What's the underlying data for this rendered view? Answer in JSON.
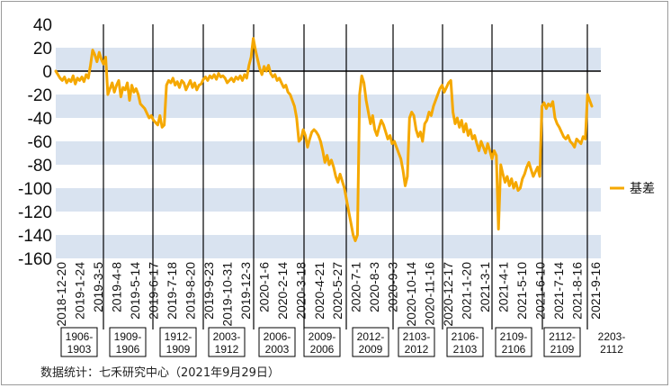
{
  "chart_data": {
    "type": "line",
    "source_note": "数据统计：七禾研究中心（2021年9月29日）",
    "series": [
      {
        "name": "基差",
        "color": "#f5a800"
      }
    ],
    "legend_position": "right",
    "ylim": [
      -160,
      40
    ],
    "yticks": [
      40,
      20,
      0,
      -20,
      -40,
      -60,
      -80,
      -100,
      -120,
      -140,
      -160
    ],
    "x_tick_labels": [
      "2018-12-20",
      "2019-1-24",
      "2019-3-5",
      "2019-4-8",
      "2019-5-14",
      "2019-6-17",
      "2019-7-18",
      "2019-8-20",
      "2019-9-23",
      "2019-10-31",
      "2019-12-3",
      "2020-1-6",
      "2020-2-14",
      "2020-3-18",
      "2020-4-21",
      "2020-5-27",
      "2020-7-1",
      "2020-8-3",
      "2020-9-3",
      "2020-10-14",
      "2020-11-16",
      "2020-12-17",
      "2021-1-20",
      "2021-3-1",
      "2021-4-1",
      "2021-5-10",
      "2021-6-10",
      "2021-7-14",
      "2021-8-16",
      "2021-9-16"
    ],
    "band_color": "#d9e3f0",
    "contract_periods": [
      "1906-1903",
      "1909-1906",
      "1912-1909",
      "2003-1912",
      "2006-2003",
      "2009-2006",
      "2012-2009",
      "2103-2012",
      "2106-2103",
      "2109-2106",
      "2112-2109",
      "2203-2112"
    ],
    "y": [
      0,
      -3,
      -6,
      -8,
      -5,
      -10,
      -7,
      -9,
      -4,
      -11,
      -6,
      -8,
      -5,
      -9,
      -3,
      -6,
      5,
      18,
      14,
      8,
      16,
      10,
      6,
      12,
      -20,
      -15,
      -10,
      -18,
      -12,
      -8,
      -22,
      -14,
      -16,
      -10,
      -25,
      -12,
      -18,
      -15,
      -20,
      -28,
      -30,
      -32,
      -36,
      -40,
      -38,
      -42,
      -44,
      -46,
      -38,
      -48,
      -46,
      -12,
      -8,
      -10,
      -6,
      -12,
      -9,
      -14,
      -8,
      -10,
      -16,
      -12,
      -8,
      -14,
      -10,
      -16,
      -12,
      -11,
      -7,
      -5,
      -8,
      -4,
      -6,
      -3,
      -7,
      -2,
      -5,
      -4,
      -6,
      -10,
      -8,
      -6,
      -9,
      -5,
      -7,
      -4,
      -8,
      -3,
      -6,
      5,
      12,
      28,
      18,
      10,
      2,
      -3,
      4,
      0,
      5,
      -2,
      -5,
      -3,
      -8,
      -6,
      -10,
      -14,
      -12,
      -18,
      -20,
      -25,
      -30,
      -40,
      -60,
      -58,
      -50,
      -55,
      -65,
      -58,
      -52,
      -50,
      -52,
      -55,
      -60,
      -68,
      -78,
      -72,
      -80,
      -76,
      -82,
      -90,
      -95,
      -88,
      -94,
      -100,
      -110,
      -120,
      -130,
      -140,
      -145,
      -140,
      -20,
      -4,
      -10,
      -25,
      -35,
      -45,
      -38,
      -50,
      -55,
      -48,
      -42,
      -46,
      -52,
      -58,
      -55,
      -62,
      -60,
      -65,
      -70,
      -75,
      -85,
      -98,
      -90,
      -40,
      -35,
      -38,
      -50,
      -56,
      -52,
      -60,
      -45,
      -42,
      -35,
      -38,
      -30,
      -25,
      -20,
      -15,
      -12,
      -18,
      -14,
      -10,
      -8,
      -35,
      -45,
      -40,
      -48,
      -42,
      -52,
      -45,
      -55,
      -50,
      -58,
      -55,
      -62,
      -68,
      -60,
      -65,
      -70,
      -62,
      -68,
      -75,
      -68,
      -72,
      -135,
      -80,
      -88,
      -95,
      -90,
      -98,
      -92,
      -100,
      -95,
      -102,
      -100,
      -92,
      -88,
      -82,
      -78,
      -84,
      -90,
      -86,
      -82,
      -90,
      -30,
      -27,
      -32,
      -28,
      -30,
      -26,
      -40,
      -45,
      -48,
      -52,
      -56,
      -58,
      -55,
      -60,
      -62,
      -65,
      -58,
      -60,
      -62,
      -56,
      -58,
      -20,
      -25,
      -30
    ]
  }
}
